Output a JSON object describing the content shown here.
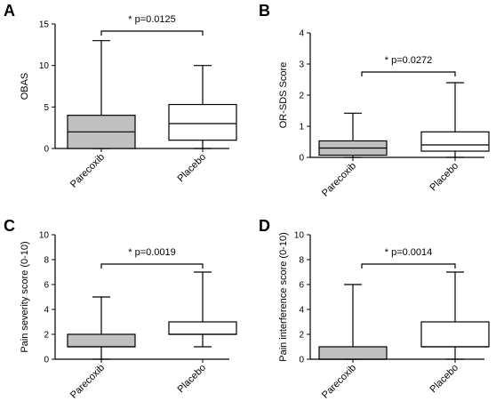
{
  "chart_data": [
    {
      "type": "box",
      "panel": "A",
      "ylabel": "OBAS",
      "ylim": [
        0,
        15
      ],
      "yticks": [
        "0",
        "5",
        "10",
        "15"
      ],
      "categories": [
        "Parecoxib",
        "Placebo"
      ],
      "boxes": [
        {
          "min": 0,
          "q1": 0,
          "median": 2,
          "q3": 4,
          "max": 13
        },
        {
          "min": 0,
          "q1": 1,
          "median": 3,
          "q3": 5.3,
          "max": 10
        }
      ],
      "annotation": "* p=0.0125"
    },
    {
      "type": "box",
      "panel": "B",
      "ylabel": "OR-SDS Score",
      "ylim": [
        0,
        4
      ],
      "yticks": [
        "0",
        "1",
        "2",
        "3",
        "4"
      ],
      "categories": [
        "Parecoxib",
        "Placebo"
      ],
      "boxes": [
        {
          "min": 0,
          "q1": 0.07,
          "median": 0.3,
          "q3": 0.53,
          "max": 1.42
        },
        {
          "min": 0,
          "q1": 0.2,
          "median": 0.4,
          "q3": 0.82,
          "max": 2.4
        }
      ],
      "annotation": "* p=0.0272"
    },
    {
      "type": "box",
      "panel": "C",
      "ylabel": "Pain severity score (0-10)",
      "ylim": [
        0,
        10
      ],
      "yticks": [
        "0",
        "2",
        "4",
        "6",
        "8",
        "10"
      ],
      "categories": [
        "Parecoxib",
        "Placebo"
      ],
      "boxes": [
        {
          "min": 0,
          "q1": 1,
          "median": 1,
          "q3": 2,
          "max": 5
        },
        {
          "min": 1,
          "q1": 2,
          "median": 2,
          "q3": 3,
          "max": 7
        }
      ],
      "annotation": "* p=0.0019"
    },
    {
      "type": "box",
      "panel": "D",
      "ylabel": "Pain interference score (0-10)",
      "ylim": [
        0,
        10
      ],
      "yticks": [
        "0",
        "2",
        "4",
        "6",
        "8",
        "10"
      ],
      "categories": [
        "Parecoxib",
        "Placebo"
      ],
      "boxes": [
        {
          "min": 0,
          "q1": 0,
          "median": 0,
          "q3": 1,
          "max": 6
        },
        {
          "min": 0,
          "q1": 1,
          "median": 1,
          "q3": 3,
          "max": 7
        }
      ],
      "annotation": "* p=0.0014"
    }
  ],
  "colors": {
    "box_fill": [
      "#c0c0c0",
      "#ffffff"
    ],
    "stroke": "#000000"
  }
}
